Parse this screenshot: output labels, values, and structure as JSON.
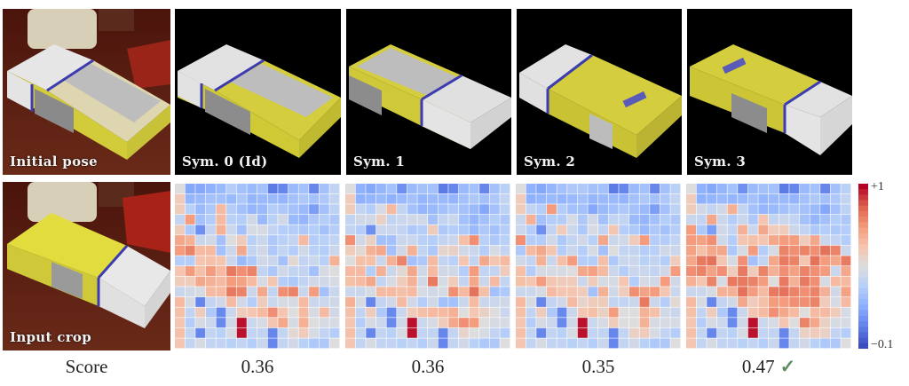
{
  "figure": {
    "top_row": [
      {
        "label": "Initial pose",
        "kind": "photo"
      },
      {
        "label": "Sym. 0 (Id)",
        "kind": "render"
      },
      {
        "label": "Sym. 1",
        "kind": "render"
      },
      {
        "label": "Sym. 2",
        "kind": "render"
      },
      {
        "label": "Sym. 3",
        "kind": "render"
      }
    ],
    "bottom_row": {
      "input_label": "Input crop"
    },
    "score_row": {
      "label": "Score",
      "values": [
        "0.36",
        "0.36",
        "0.35",
        "0.47"
      ],
      "best_index": 3,
      "check_glyph": "✓"
    },
    "colorbar": {
      "max_label": "+1",
      "min_label": "−0.1",
      "min": -0.1,
      "max": 1.0,
      "colormap": "coolwarm"
    },
    "colors": {
      "check": "#5e8f63",
      "box_yellow": "#d6cf3c",
      "box_white": "#e4e4e4",
      "box_blue": "#3c3cb0",
      "floor": "#5a1a10"
    }
  },
  "chart_data": [
    {
      "type": "heatmap",
      "title": "Sym. 0 (Id)",
      "score": 0.36,
      "rows": 16,
      "cols": 16,
      "vmin": -0.1,
      "vmax": 1.0,
      "values": [
        [
          0.45,
          0.15,
          0.15,
          0.18,
          0.22,
          0.3,
          0.25,
          0.22,
          0.25,
          0.02,
          0.05,
          0.22,
          0.25,
          0.05,
          0.25,
          0.35
        ],
        [
          0.55,
          0.2,
          0.22,
          0.25,
          0.25,
          0.22,
          0.28,
          0.2,
          0.22,
          0.22,
          0.2,
          0.25,
          0.28,
          0.25,
          0.28,
          0.35
        ],
        [
          0.55,
          0.32,
          0.22,
          0.28,
          0.62,
          0.3,
          0.25,
          0.2,
          0.22,
          0.3,
          0.28,
          0.25,
          0.22,
          0.12,
          0.25,
          0.33
        ],
        [
          0.35,
          0.72,
          0.25,
          0.3,
          0.62,
          0.32,
          0.3,
          0.4,
          0.22,
          0.32,
          0.4,
          0.22,
          0.2,
          0.28,
          0.3,
          0.28
        ],
        [
          0.55,
          0.28,
          0.08,
          0.35,
          0.65,
          0.38,
          0.25,
          0.42,
          0.42,
          0.35,
          0.3,
          0.3,
          0.28,
          0.3,
          0.25,
          0.3
        ],
        [
          0.68,
          0.65,
          0.38,
          0.4,
          0.25,
          0.45,
          0.55,
          0.32,
          0.38,
          0.28,
          0.32,
          0.35,
          0.62,
          0.3,
          0.32,
          0.35
        ],
        [
          0.72,
          0.78,
          0.62,
          0.62,
          0.25,
          0.38,
          0.68,
          0.35,
          0.4,
          0.28,
          0.35,
          0.3,
          0.4,
          0.32,
          0.3,
          0.38
        ],
        [
          0.3,
          0.3,
          0.58,
          0.6,
          0.58,
          0.38,
          0.22,
          0.28,
          0.4,
          0.38,
          0.25,
          0.48,
          0.35,
          0.38,
          0.32,
          0.65
        ],
        [
          0.58,
          0.72,
          0.6,
          0.72,
          0.62,
          0.8,
          0.75,
          0.78,
          0.35,
          0.28,
          0.4,
          0.35,
          0.35,
          0.25,
          0.42,
          0.45
        ],
        [
          0.55,
          0.55,
          0.68,
          0.65,
          0.62,
          0.72,
          0.7,
          0.62,
          0.42,
          0.58,
          0.3,
          0.28,
          0.35,
          0.4,
          0.4,
          0.42
        ],
        [
          0.38,
          0.4,
          0.42,
          0.62,
          0.62,
          0.8,
          0.78,
          0.38,
          0.68,
          0.35,
          0.75,
          0.78,
          0.38,
          0.72,
          0.25,
          0.38
        ],
        [
          0.62,
          0.42,
          0.05,
          0.35,
          0.4,
          0.62,
          0.4,
          0.3,
          0.55,
          0.38,
          0.42,
          0.42,
          0.62,
          0.38,
          0.38,
          0.4
        ],
        [
          0.6,
          0.35,
          0.55,
          0.28,
          0.06,
          0.38,
          0.55,
          0.58,
          0.62,
          0.75,
          0.58,
          0.45,
          0.62,
          0.42,
          0.62,
          0.4
        ],
        [
          0.58,
          0.3,
          0.42,
          0.38,
          0.06,
          0.4,
          0.98,
          0.38,
          0.42,
          0.58,
          0.68,
          0.42,
          0.65,
          0.45,
          0.42,
          0.42
        ],
        [
          0.6,
          0.35,
          0.05,
          0.35,
          0.32,
          0.42,
          0.98,
          0.35,
          0.35,
          0.05,
          0.35,
          0.48,
          0.55,
          0.42,
          0.35,
          0.3
        ],
        [
          0.58,
          0.35,
          0.42,
          0.35,
          0.35,
          0.32,
          0.35,
          0.3,
          0.38,
          0.05,
          0.35,
          0.4,
          0.32,
          0.28,
          0.28,
          0.45
        ]
      ]
    },
    {
      "type": "heatmap",
      "title": "Sym. 1",
      "score": 0.36,
      "rows": 16,
      "cols": 16,
      "vmin": -0.1,
      "vmax": 1.0,
      "values": [
        [
          0.45,
          0.18,
          0.15,
          0.2,
          0.25,
          0.08,
          0.22,
          0.25,
          0.25,
          0.02,
          0.05,
          0.22,
          0.25,
          0.05,
          0.25,
          0.32
        ],
        [
          0.55,
          0.18,
          0.2,
          0.22,
          0.18,
          0.22,
          0.25,
          0.2,
          0.22,
          0.22,
          0.2,
          0.25,
          0.28,
          0.25,
          0.28,
          0.35
        ],
        [
          0.55,
          0.35,
          0.3,
          0.42,
          0.62,
          0.35,
          0.25,
          0.2,
          0.22,
          0.25,
          0.28,
          0.25,
          0.22,
          0.15,
          0.25,
          0.33
        ],
        [
          0.35,
          0.4,
          0.4,
          0.52,
          0.35,
          0.38,
          0.4,
          0.4,
          0.25,
          0.35,
          0.38,
          0.25,
          0.2,
          0.25,
          0.3,
          0.28
        ],
        [
          0.35,
          0.3,
          0.08,
          0.38,
          0.38,
          0.35,
          0.28,
          0.3,
          0.55,
          0.28,
          0.3,
          0.28,
          0.22,
          0.28,
          0.25,
          0.3
        ],
        [
          0.75,
          0.4,
          0.52,
          0.25,
          0.25,
          0.38,
          0.38,
          0.32,
          0.3,
          0.35,
          0.38,
          0.6,
          0.75,
          0.32,
          0.28,
          0.32
        ],
        [
          0.55,
          0.48,
          0.65,
          0.68,
          0.25,
          0.4,
          0.65,
          0.35,
          0.28,
          0.5,
          0.52,
          0.4,
          0.38,
          0.3,
          0.42,
          0.35
        ],
        [
          0.45,
          0.6,
          0.6,
          0.38,
          0.65,
          0.78,
          0.25,
          0.28,
          0.62,
          0.35,
          0.32,
          0.58,
          0.35,
          0.68,
          0.58,
          0.62
        ],
        [
          0.62,
          0.62,
          0.3,
          0.65,
          0.38,
          0.48,
          0.68,
          0.4,
          0.62,
          0.4,
          0.4,
          0.3,
          0.72,
          0.35,
          0.35,
          0.55
        ],
        [
          0.6,
          0.62,
          0.68,
          0.35,
          0.42,
          0.55,
          0.65,
          0.4,
          0.8,
          0.42,
          0.55,
          0.35,
          0.68,
          0.38,
          0.62,
          0.35
        ],
        [
          0.38,
          0.38,
          0.42,
          0.62,
          0.62,
          0.6,
          0.62,
          0.42,
          0.4,
          0.42,
          0.75,
          0.62,
          0.82,
          0.6,
          0.25,
          0.28
        ],
        [
          0.65,
          0.42,
          0.05,
          0.35,
          0.4,
          0.62,
          0.4,
          0.3,
          0.4,
          0.25,
          0.25,
          0.38,
          0.62,
          0.38,
          0.38,
          0.4
        ],
        [
          0.6,
          0.35,
          0.55,
          0.28,
          0.06,
          0.38,
          0.55,
          0.6,
          0.62,
          0.62,
          0.65,
          0.45,
          0.58,
          0.52,
          0.45,
          0.38
        ],
        [
          0.58,
          0.3,
          0.42,
          0.38,
          0.06,
          0.4,
          0.98,
          0.38,
          0.42,
          0.55,
          0.68,
          0.75,
          0.72,
          0.45,
          0.42,
          0.42
        ],
        [
          0.6,
          0.35,
          0.05,
          0.35,
          0.32,
          0.42,
          0.98,
          0.35,
          0.35,
          0.05,
          0.35,
          0.5,
          0.45,
          0.42,
          0.35,
          0.3
        ],
        [
          0.58,
          0.35,
          0.42,
          0.35,
          0.35,
          0.32,
          0.35,
          0.3,
          0.38,
          0.05,
          0.35,
          0.4,
          0.32,
          0.28,
          0.28,
          0.45
        ]
      ]
    },
    {
      "type": "heatmap",
      "title": "Sym. 2",
      "score": 0.35,
      "rows": 16,
      "cols": 16,
      "vmin": -0.1,
      "vmax": 1.0,
      "values": [
        [
          0.45,
          0.18,
          0.15,
          0.2,
          0.25,
          0.28,
          0.28,
          0.25,
          0.25,
          0.02,
          0.05,
          0.22,
          0.25,
          0.05,
          0.25,
          0.32
        ],
        [
          0.55,
          0.18,
          0.2,
          0.22,
          0.2,
          0.22,
          0.25,
          0.2,
          0.22,
          0.22,
          0.2,
          0.25,
          0.28,
          0.25,
          0.28,
          0.35
        ],
        [
          0.55,
          0.35,
          0.3,
          0.72,
          0.3,
          0.25,
          0.25,
          0.15,
          0.22,
          0.25,
          0.28,
          0.25,
          0.22,
          0.12,
          0.25,
          0.33
        ],
        [
          0.38,
          0.65,
          0.25,
          0.3,
          0.3,
          0.42,
          0.28,
          0.4,
          0.25,
          0.35,
          0.35,
          0.22,
          0.2,
          0.25,
          0.3,
          0.28
        ],
        [
          0.38,
          0.3,
          0.08,
          0.35,
          0.55,
          0.38,
          0.28,
          0.42,
          0.35,
          0.58,
          0.3,
          0.28,
          0.22,
          0.28,
          0.25,
          0.3
        ],
        [
          0.75,
          0.3,
          0.3,
          0.4,
          0.28,
          0.35,
          0.4,
          0.32,
          0.68,
          0.38,
          0.4,
          0.55,
          0.72,
          0.3,
          0.3,
          0.35
        ],
        [
          0.28,
          0.62,
          0.68,
          0.58,
          0.3,
          0.38,
          0.3,
          0.42,
          0.25,
          0.45,
          0.35,
          0.35,
          0.3,
          0.32,
          0.4,
          0.38
        ],
        [
          0.4,
          0.35,
          0.65,
          0.38,
          0.6,
          0.72,
          0.3,
          0.3,
          0.6,
          0.28,
          0.38,
          0.38,
          0.32,
          0.35,
          0.3,
          0.55
        ],
        [
          0.6,
          0.3,
          0.42,
          0.42,
          0.42,
          0.45,
          0.68,
          0.7,
          0.62,
          0.38,
          0.3,
          0.38,
          0.38,
          0.35,
          0.4,
          0.72
        ],
        [
          0.6,
          0.58,
          0.72,
          0.58,
          0.55,
          0.55,
          0.38,
          0.55,
          0.42,
          0.42,
          0.58,
          0.3,
          0.42,
          0.4,
          0.72,
          0.4
        ],
        [
          0.38,
          0.38,
          0.42,
          0.62,
          0.58,
          0.58,
          0.55,
          0.25,
          0.65,
          0.4,
          0.55,
          0.75,
          0.7,
          0.72,
          0.58,
          0.38
        ],
        [
          0.62,
          0.42,
          0.05,
          0.35,
          0.4,
          0.62,
          0.5,
          0.55,
          0.55,
          0.35,
          0.35,
          0.38,
          0.8,
          0.38,
          0.3,
          0.48
        ],
        [
          0.6,
          0.35,
          0.55,
          0.28,
          0.06,
          0.38,
          0.58,
          0.6,
          0.52,
          0.72,
          0.45,
          0.45,
          0.65,
          0.6,
          0.4,
          0.38
        ],
        [
          0.58,
          0.3,
          0.42,
          0.38,
          0.06,
          0.4,
          0.98,
          0.38,
          0.42,
          0.55,
          0.45,
          0.45,
          0.65,
          0.42,
          0.42,
          0.42
        ],
        [
          0.6,
          0.35,
          0.05,
          0.35,
          0.32,
          0.42,
          0.98,
          0.35,
          0.35,
          0.05,
          0.35,
          0.52,
          0.55,
          0.42,
          0.35,
          0.3
        ],
        [
          0.58,
          0.35,
          0.42,
          0.35,
          0.35,
          0.32,
          0.35,
          0.3,
          0.38,
          0.05,
          0.35,
          0.4,
          0.32,
          0.28,
          0.28,
          0.45
        ]
      ]
    },
    {
      "type": "heatmap",
      "title": "Sym. 3",
      "score": 0.47,
      "rows": 16,
      "cols": 16,
      "vmin": -0.1,
      "vmax": 1.0,
      "values": [
        [
          0.45,
          0.18,
          0.15,
          0.2,
          0.25,
          0.08,
          0.22,
          0.25,
          0.25,
          0.02,
          0.05,
          0.22,
          0.25,
          0.05,
          0.25,
          0.32
        ],
        [
          0.55,
          0.18,
          0.2,
          0.22,
          0.2,
          0.22,
          0.25,
          0.2,
          0.22,
          0.22,
          0.2,
          0.25,
          0.28,
          0.25,
          0.28,
          0.35
        ],
        [
          0.55,
          0.4,
          0.35,
          0.4,
          0.65,
          0.35,
          0.25,
          0.2,
          0.22,
          0.25,
          0.28,
          0.25,
          0.22,
          0.15,
          0.25,
          0.33
        ],
        [
          0.38,
          0.35,
          0.68,
          0.38,
          0.3,
          0.38,
          0.28,
          0.58,
          0.35,
          0.38,
          0.35,
          0.25,
          0.2,
          0.25,
          0.3,
          0.28
        ],
        [
          0.72,
          0.28,
          0.12,
          0.4,
          0.35,
          0.65,
          0.38,
          0.68,
          0.55,
          0.55,
          0.38,
          0.35,
          0.28,
          0.3,
          0.28,
          0.3
        ],
        [
          0.72,
          0.7,
          0.75,
          0.4,
          0.3,
          0.58,
          0.6,
          0.58,
          0.68,
          0.72,
          0.72,
          0.55,
          0.68,
          0.38,
          0.35,
          0.3
        ],
        [
          0.7,
          0.6,
          0.68,
          0.68,
          0.28,
          0.42,
          0.72,
          0.3,
          0.42,
          0.78,
          0.75,
          0.78,
          0.75,
          0.82,
          0.78,
          0.38
        ],
        [
          0.68,
          0.8,
          0.82,
          0.58,
          0.42,
          0.75,
          0.25,
          0.35,
          0.68,
          0.8,
          0.78,
          0.58,
          0.82,
          0.72,
          0.68,
          0.8
        ],
        [
          0.75,
          0.78,
          0.7,
          0.75,
          0.55,
          0.8,
          0.55,
          0.78,
          0.65,
          0.75,
          0.7,
          0.78,
          0.75,
          0.72,
          0.38,
          0.68
        ],
        [
          0.65,
          0.58,
          0.78,
          0.42,
          0.8,
          0.8,
          0.78,
          0.72,
          0.45,
          0.8,
          0.65,
          0.8,
          0.75,
          0.42,
          0.62,
          0.62
        ],
        [
          0.38,
          0.38,
          0.42,
          0.65,
          0.65,
          0.82,
          0.72,
          0.62,
          0.8,
          0.82,
          0.78,
          0.75,
          0.78,
          0.65,
          0.4,
          0.7
        ],
        [
          0.62,
          0.42,
          0.05,
          0.35,
          0.4,
          0.68,
          0.55,
          0.6,
          0.72,
          0.72,
          0.75,
          0.75,
          0.78,
          0.55,
          0.42,
          0.62
        ],
        [
          0.6,
          0.35,
          0.55,
          0.28,
          0.06,
          0.38,
          0.58,
          0.62,
          0.75,
          0.68,
          0.62,
          0.45,
          0.62,
          0.62,
          0.55,
          0.42
        ],
        [
          0.58,
          0.3,
          0.42,
          0.38,
          0.06,
          0.4,
          0.98,
          0.38,
          0.42,
          0.58,
          0.45,
          0.78,
          0.68,
          0.52,
          0.42,
          0.42
        ],
        [
          0.6,
          0.35,
          0.05,
          0.35,
          0.32,
          0.42,
          0.98,
          0.35,
          0.35,
          0.05,
          0.35,
          0.52,
          0.55,
          0.52,
          0.35,
          0.3
        ],
        [
          0.58,
          0.35,
          0.42,
          0.35,
          0.35,
          0.32,
          0.35,
          0.3,
          0.38,
          0.05,
          0.35,
          0.4,
          0.32,
          0.28,
          0.28,
          0.45
        ]
      ]
    }
  ]
}
